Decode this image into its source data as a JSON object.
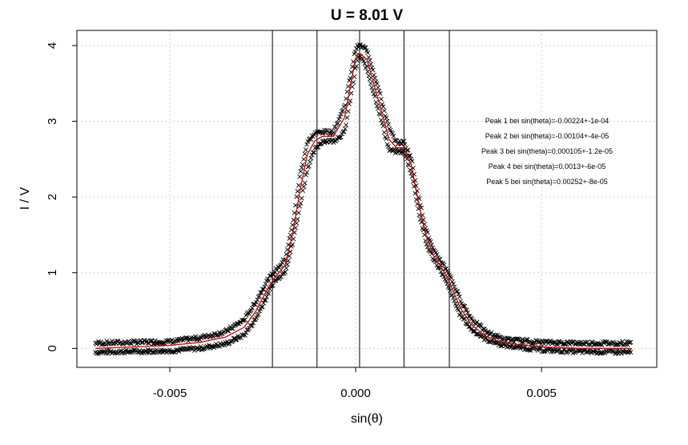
{
  "chart_data": {
    "type": "scatter",
    "title": "U = 8.01 V",
    "xlabel": "sin(θ)",
    "ylabel": "I / V",
    "xlim": [
      -0.0075,
      0.0081
    ],
    "ylim": [
      -0.25,
      4.2
    ],
    "x_ticks": [
      -0.005,
      0.0,
      0.005
    ],
    "x_tick_labels": [
      "-0.005",
      "0.000",
      "0.005"
    ],
    "y_ticks": [
      0,
      1,
      2,
      3,
      4
    ],
    "y_tick_labels": [
      "0",
      "1",
      "2",
      "3",
      "4"
    ],
    "grid": true,
    "series": [
      {
        "marker": "x",
        "color": "#000000",
        "x_range": [
          -0.007,
          0.0074
        ],
        "lower_branch": [
          [
            -0.007,
            -0.05
          ],
          [
            -0.006,
            -0.04
          ],
          [
            -0.005,
            -0.03
          ],
          [
            -0.0042,
            0.0
          ],
          [
            -0.0035,
            0.06
          ],
          [
            -0.003,
            0.18
          ],
          [
            -0.0027,
            0.38
          ],
          [
            -0.0024,
            0.68
          ],
          [
            -0.0022,
            0.88
          ],
          [
            -0.0019,
            1.02
          ],
          [
            -0.0017,
            1.38
          ],
          [
            -0.0015,
            1.88
          ],
          [
            -0.0013,
            2.38
          ],
          [
            -0.0011,
            2.62
          ],
          [
            -0.0009,
            2.74
          ],
          [
            -0.0006,
            2.74
          ],
          [
            -0.0003,
            2.85
          ],
          [
            0.0,
            3.7
          ],
          [
            0.0001,
            3.88
          ],
          [
            0.0003,
            3.7
          ],
          [
            0.0006,
            3.18
          ],
          [
            0.0009,
            2.62
          ],
          [
            0.0011,
            2.6
          ],
          [
            0.0013,
            2.6
          ],
          [
            0.0015,
            2.32
          ],
          [
            0.0017,
            1.8
          ],
          [
            0.0019,
            1.38
          ],
          [
            0.0021,
            1.18
          ],
          [
            0.0023,
            1.02
          ],
          [
            0.0025,
            0.8
          ],
          [
            0.0028,
            0.46
          ],
          [
            0.0031,
            0.26
          ],
          [
            0.0035,
            0.12
          ],
          [
            0.004,
            0.04
          ],
          [
            0.005,
            -0.02
          ],
          [
            0.006,
            -0.04
          ],
          [
            0.0074,
            -0.05
          ]
        ],
        "upper_branch": [
          [
            -0.007,
            0.07
          ],
          [
            -0.006,
            0.08
          ],
          [
            -0.005,
            0.09
          ],
          [
            -0.0042,
            0.14
          ],
          [
            -0.0035,
            0.22
          ],
          [
            -0.003,
            0.38
          ],
          [
            -0.0027,
            0.6
          ],
          [
            -0.0024,
            0.88
          ],
          [
            -0.0022,
            1.0
          ],
          [
            -0.0019,
            1.18
          ],
          [
            -0.0017,
            1.62
          ],
          [
            -0.0015,
            2.28
          ],
          [
            -0.0013,
            2.72
          ],
          [
            -0.0011,
            2.84
          ],
          [
            -0.0009,
            2.86
          ],
          [
            -0.0006,
            2.86
          ],
          [
            -0.0003,
            3.2
          ],
          [
            0.0,
            3.96
          ],
          [
            0.0001,
            4.0
          ],
          [
            0.0003,
            3.95
          ],
          [
            0.0006,
            3.45
          ],
          [
            0.0009,
            2.9
          ],
          [
            0.0011,
            2.72
          ],
          [
            0.0013,
            2.72
          ],
          [
            0.0015,
            2.5
          ],
          [
            0.0017,
            1.98
          ],
          [
            0.0019,
            1.56
          ],
          [
            0.0021,
            1.28
          ],
          [
            0.0023,
            1.15
          ],
          [
            0.0025,
            1.0
          ],
          [
            0.0028,
            0.66
          ],
          [
            0.0031,
            0.4
          ],
          [
            0.0035,
            0.22
          ],
          [
            0.004,
            0.12
          ],
          [
            0.005,
            0.08
          ],
          [
            0.006,
            0.07
          ],
          [
            0.0074,
            0.07
          ]
        ]
      },
      {
        "marker": "line",
        "color": "#cc0000",
        "points": [
          [
            -0.007,
            0.0
          ],
          [
            -0.006,
            0.02
          ],
          [
            -0.005,
            0.04
          ],
          [
            -0.0042,
            0.08
          ],
          [
            -0.0035,
            0.15
          ],
          [
            -0.003,
            0.28
          ],
          [
            -0.0027,
            0.48
          ],
          [
            -0.0024,
            0.76
          ],
          [
            -0.0022,
            0.92
          ],
          [
            -0.0019,
            1.1
          ],
          [
            -0.0017,
            1.5
          ],
          [
            -0.0015,
            2.08
          ],
          [
            -0.0013,
            2.56
          ],
          [
            -0.0011,
            2.74
          ],
          [
            -0.0009,
            2.8
          ],
          [
            -0.0006,
            2.8
          ],
          [
            -0.0003,
            3.05
          ],
          [
            0.0,
            3.84
          ],
          [
            0.0001,
            3.9
          ],
          [
            0.0003,
            3.82
          ],
          [
            0.0006,
            3.3
          ],
          [
            0.0009,
            2.76
          ],
          [
            0.0011,
            2.65
          ],
          [
            0.0013,
            2.65
          ],
          [
            0.0015,
            2.42
          ],
          [
            0.0017,
            1.9
          ],
          [
            0.0019,
            1.48
          ],
          [
            0.0021,
            1.22
          ],
          [
            0.0023,
            1.08
          ],
          [
            0.0025,
            0.9
          ],
          [
            0.0028,
            0.55
          ],
          [
            0.0031,
            0.32
          ],
          [
            0.0035,
            0.16
          ],
          [
            0.004,
            0.07
          ],
          [
            0.005,
            0.02
          ],
          [
            0.006,
            0.0
          ],
          [
            0.0074,
            0.0
          ]
        ]
      }
    ],
    "vertical_lines": [
      -0.00224,
      -0.00104,
      0.000105,
      0.0013,
      0.00252
    ],
    "annotations": [
      "Peak 1 bei sin(theta)=-0.00224+-1e-04",
      "Peak 2 bei sin(theta)=-0.00104+-4e-05",
      "Peak 3 bei sin(theta)=0.000105+-1.2e-05",
      "Peak 4 bei sin(theta)=0.0013+-6e-05",
      "Peak 5 bei sin(theta)=0.00252+-8e-05"
    ]
  }
}
